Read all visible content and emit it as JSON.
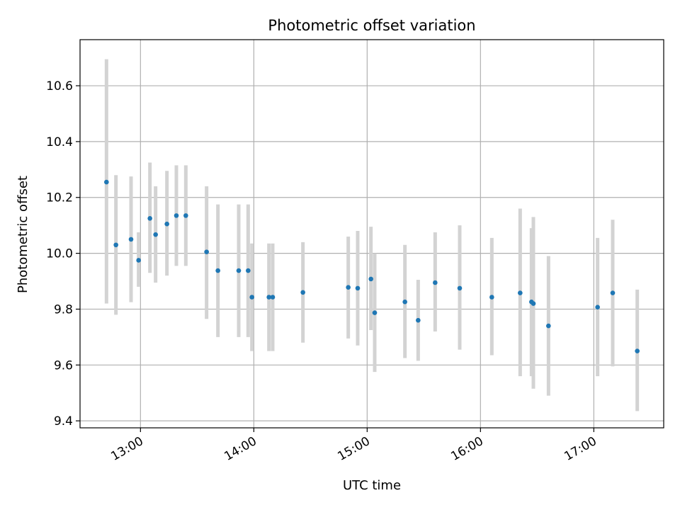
{
  "chart_data": {
    "type": "scatter",
    "title": "Photometric offset variation",
    "xlabel": "UTC time",
    "ylabel": "Photometric offset",
    "x_ticks": [
      "13:00",
      "14:00",
      "15:00",
      "16:00",
      "17:00"
    ],
    "y_ticks": [
      "9.4",
      "9.6",
      "9.8",
      "10.0",
      "10.2",
      "10.4",
      "10.6"
    ],
    "xlim": [
      "12:28",
      "17:37"
    ],
    "ylim": [
      9.375,
      10.765
    ],
    "grid": true,
    "colors": {
      "point": "#1f77b4",
      "errorbar": "#d3d3d3",
      "grid": "#b0b0b0"
    },
    "points": [
      {
        "time": "12:42",
        "y": 10.255,
        "yerr_low": 9.82,
        "yerr_high": 10.695
      },
      {
        "time": "12:47",
        "y": 10.03,
        "yerr_low": 9.78,
        "yerr_high": 10.28
      },
      {
        "time": "12:55",
        "y": 10.05,
        "yerr_low": 9.825,
        "yerr_high": 10.275
      },
      {
        "time": "12:59",
        "y": 9.975,
        "yerr_low": 9.88,
        "yerr_high": 10.075
      },
      {
        "time": "13:05",
        "y": 10.125,
        "yerr_low": 9.93,
        "yerr_high": 10.325
      },
      {
        "time": "13:08",
        "y": 10.067,
        "yerr_low": 9.895,
        "yerr_high": 10.24
      },
      {
        "time": "13:14",
        "y": 10.105,
        "yerr_low": 9.92,
        "yerr_high": 10.295
      },
      {
        "time": "13:19",
        "y": 10.135,
        "yerr_low": 9.955,
        "yerr_high": 10.315
      },
      {
        "time": "13:24",
        "y": 10.135,
        "yerr_low": 9.955,
        "yerr_high": 10.315
      },
      {
        "time": "13:35",
        "y": 10.005,
        "yerr_low": 9.765,
        "yerr_high": 10.24
      },
      {
        "time": "13:41",
        "y": 9.938,
        "yerr_low": 9.7,
        "yerr_high": 10.175
      },
      {
        "time": "13:52",
        "y": 9.938,
        "yerr_low": 9.7,
        "yerr_high": 10.175
      },
      {
        "time": "13:57",
        "y": 9.938,
        "yerr_low": 9.7,
        "yerr_high": 10.175
      },
      {
        "time": "13:59",
        "y": 9.843,
        "yerr_low": 9.65,
        "yerr_high": 10.035
      },
      {
        "time": "14:08",
        "y": 9.843,
        "yerr_low": 9.65,
        "yerr_high": 10.035
      },
      {
        "time": "14:10",
        "y": 9.843,
        "yerr_low": 9.65,
        "yerr_high": 10.035
      },
      {
        "time": "14:26",
        "y": 9.86,
        "yerr_low": 9.68,
        "yerr_high": 10.04
      },
      {
        "time": "14:50",
        "y": 9.878,
        "yerr_low": 9.695,
        "yerr_high": 10.06
      },
      {
        "time": "14:55",
        "y": 9.875,
        "yerr_low": 9.67,
        "yerr_high": 10.08
      },
      {
        "time": "15:02",
        "y": 9.908,
        "yerr_low": 9.725,
        "yerr_high": 10.095
      },
      {
        "time": "15:04",
        "y": 9.787,
        "yerr_low": 9.575,
        "yerr_high": 10.0
      },
      {
        "time": "15:20",
        "y": 9.826,
        "yerr_low": 9.625,
        "yerr_high": 10.03
      },
      {
        "time": "15:27",
        "y": 9.76,
        "yerr_low": 9.615,
        "yerr_high": 9.905
      },
      {
        "time": "15:36",
        "y": 9.895,
        "yerr_low": 9.72,
        "yerr_high": 10.075
      },
      {
        "time": "15:49",
        "y": 9.875,
        "yerr_low": 9.655,
        "yerr_high": 10.1
      },
      {
        "time": "16:06",
        "y": 9.843,
        "yerr_low": 9.635,
        "yerr_high": 10.055
      },
      {
        "time": "16:21",
        "y": 9.858,
        "yerr_low": 9.56,
        "yerr_high": 10.16
      },
      {
        "time": "16:27",
        "y": 9.826,
        "yerr_low": 9.56,
        "yerr_high": 10.09
      },
      {
        "time": "16:28",
        "y": 9.82,
        "yerr_low": 9.515,
        "yerr_high": 10.13
      },
      {
        "time": "16:36",
        "y": 9.74,
        "yerr_low": 9.49,
        "yerr_high": 9.99
      },
      {
        "time": "17:02",
        "y": 9.807,
        "yerr_low": 9.56,
        "yerr_high": 10.055
      },
      {
        "time": "17:10",
        "y": 9.858,
        "yerr_low": 9.595,
        "yerr_high": 10.12
      },
      {
        "time": "17:23",
        "y": 9.65,
        "yerr_low": 9.435,
        "yerr_high": 9.87
      }
    ]
  }
}
